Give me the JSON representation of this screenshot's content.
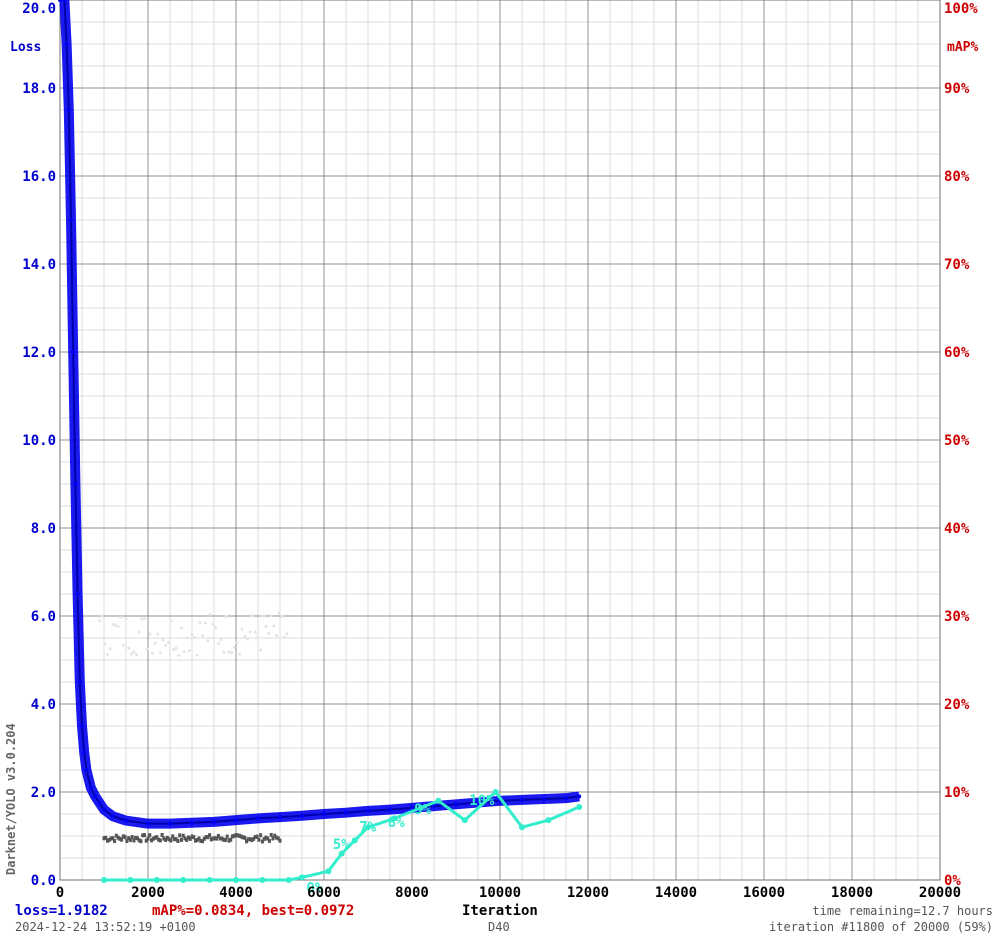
{
  "chart_data": {
    "type": "line",
    "x_axis": {
      "label": "Iteration",
      "range": [
        0,
        20000
      ],
      "ticks": [
        "0",
        "2000",
        "4000",
        "6000",
        "8000",
        "10000",
        "12000",
        "14000",
        "16000",
        "18000",
        "20000"
      ]
    },
    "y_left": {
      "label": "Loss",
      "range": [
        0,
        20
      ],
      "ticks": [
        "0.0",
        "2.0",
        "4.0",
        "6.0",
        "8.0",
        "10.0",
        "12.0",
        "14.0",
        "16.0",
        "18.0",
        "20.0"
      ]
    },
    "y_right": {
      "label": "mAP%",
      "range": [
        0,
        100
      ],
      "ticks": [
        "0%",
        "10%",
        "20%",
        "30%",
        "40%",
        "50%",
        "60%",
        "70%",
        "80%",
        "90%",
        "100%"
      ]
    },
    "grid": true,
    "loss_points": [
      [
        0,
        20.0
      ],
      [
        100,
        20.0
      ],
      [
        150,
        19.0
      ],
      [
        200,
        17.5
      ],
      [
        250,
        15.0
      ],
      [
        300,
        12.0
      ],
      [
        350,
        9.0
      ],
      [
        400,
        6.5
      ],
      [
        450,
        4.5
      ],
      [
        500,
        3.5
      ],
      [
        550,
        2.9
      ],
      [
        600,
        2.5
      ],
      [
        700,
        2.1
      ],
      [
        800,
        1.9
      ],
      [
        900,
        1.75
      ],
      [
        1000,
        1.6
      ],
      [
        1200,
        1.45
      ],
      [
        1500,
        1.35
      ],
      [
        2000,
        1.28
      ],
      [
        2500,
        1.28
      ],
      [
        3000,
        1.3
      ],
      [
        3500,
        1.32
      ],
      [
        4000,
        1.36
      ],
      [
        4500,
        1.4
      ],
      [
        5000,
        1.43
      ],
      [
        5500,
        1.46
      ],
      [
        6000,
        1.5
      ],
      [
        6500,
        1.53
      ],
      [
        7000,
        1.57
      ],
      [
        7500,
        1.6
      ],
      [
        8000,
        1.64
      ],
      [
        8500,
        1.68
      ],
      [
        9000,
        1.72
      ],
      [
        9500,
        1.76
      ],
      [
        10000,
        1.8
      ],
      [
        10500,
        1.82
      ],
      [
        11000,
        1.84
      ],
      [
        11500,
        1.86
      ],
      [
        11800,
        1.9
      ]
    ],
    "map_points": [
      [
        1000,
        0
      ],
      [
        1600,
        0
      ],
      [
        2200,
        0
      ],
      [
        2800,
        0
      ],
      [
        3400,
        0
      ],
      [
        4000,
        0
      ],
      [
        4600,
        0
      ],
      [
        5200,
        0
      ],
      [
        5500,
        0.3
      ],
      [
        6100,
        1.0
      ],
      [
        6400,
        3.0
      ],
      [
        6700,
        4.5
      ],
      [
        7000,
        6.0
      ],
      [
        7600,
        7.0
      ],
      [
        8200,
        8.2
      ],
      [
        8600,
        9.0
      ],
      [
        9200,
        6.8
      ],
      [
        9900,
        10.0
      ],
      [
        10500,
        6.0
      ],
      [
        11100,
        6.8
      ],
      [
        11800,
        8.3
      ]
    ],
    "map_labels": [
      {
        "x": 5600,
        "y": -1.5,
        "text": "0%"
      },
      {
        "x": 6200,
        "y": 3.5,
        "text": "5%"
      },
      {
        "x": 6800,
        "y": 5.5,
        "text": "7%"
      },
      {
        "x": 7450,
        "y": 6.0,
        "text": "8%"
      },
      {
        "x": 8050,
        "y": 7.5,
        "text": "9%"
      },
      {
        "x": 9300,
        "y": 8.5,
        "text": "10%"
      }
    ],
    "colors": {
      "loss": "#0000ee",
      "map": "#33eecc",
      "left_axis": "#0000cc",
      "right_axis": "#cc0000",
      "grid_major": "#909090",
      "grid_minor": "#dcdcdc"
    }
  },
  "footer": {
    "loss_text": "loss=1.9182",
    "map_text": "mAP%=0.0834,  best=0.0972",
    "x_label": "Iteration",
    "time_remaining": "time remaining=12.7 hours",
    "timestamp": "2024-12-24 13:52:19 +0100",
    "tag": "D40",
    "iteration": "iteration #11800 of 20000 (59%)"
  },
  "side_label": "Darknet/YOLO v3.0.204"
}
